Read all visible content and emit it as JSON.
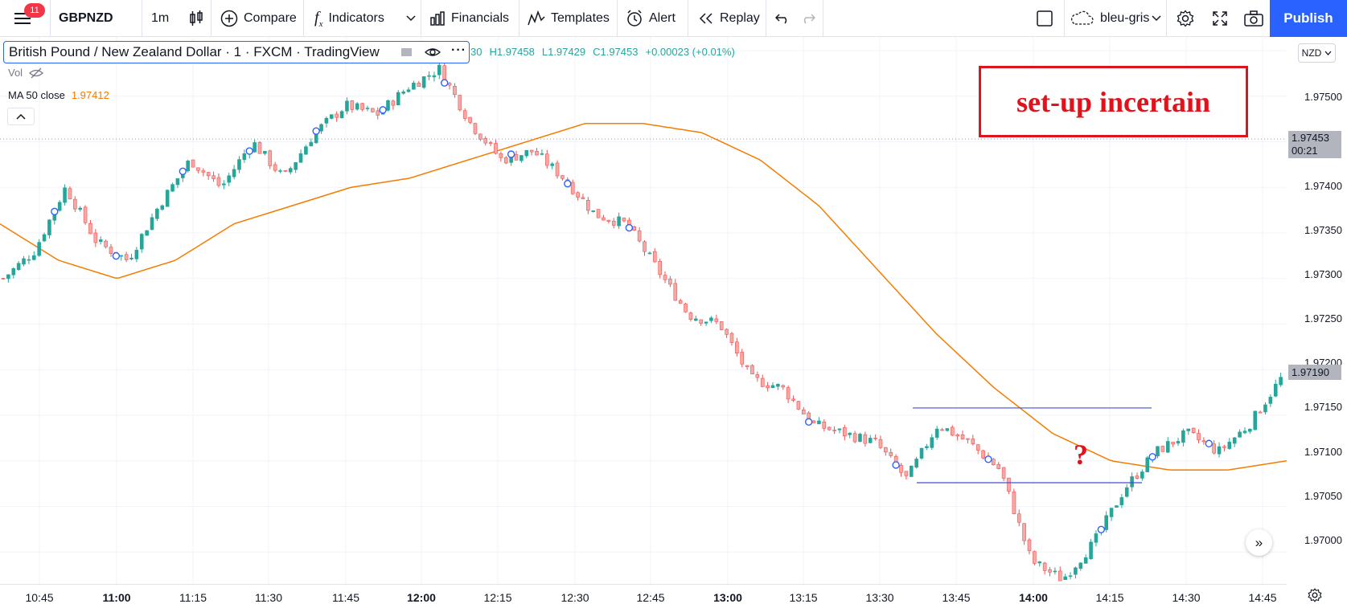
{
  "toolbar": {
    "notif_count": "11",
    "symbol": "GBPNZD",
    "interval": "1m",
    "compare_label": "Compare",
    "indicators_label": "Indicators",
    "financials_label": "Financials",
    "templates_label": "Templates",
    "alert_label": "Alert",
    "replay_label": "Replay",
    "layout_name": "bleu-gris",
    "publish_label": "Publish"
  },
  "legend": {
    "title": "British Pound / New Zealand Dollar · 1 · FXCM · TradingView",
    "ohlc_prefix": "30",
    "high": "H1.97458",
    "low": "L1.97429",
    "close": "C1.97453",
    "change": "+0.00023 (+0.01%)",
    "vol_label": "Vol",
    "ma_label": "MA 50 close",
    "ma_value": "1.97412"
  },
  "annotation": {
    "box_text": "set-up incertain",
    "question": "?"
  },
  "price_axis": {
    "currency": "NZD",
    "labels": [
      "1.97500",
      "1.97400",
      "1.97350",
      "1.97300",
      "1.97250",
      "1.97200",
      "1.97150",
      "1.97100",
      "1.97050",
      "1.97000"
    ],
    "current_price": "1.97453",
    "countdown": "00:21",
    "last_price": "1.97190"
  },
  "time_axis": {
    "labels": [
      "10:45",
      "11:00",
      "11:15",
      "11:30",
      "11:45",
      "12:00",
      "12:15",
      "12:30",
      "12:45",
      "13:00",
      "13:15",
      "13:30",
      "13:45",
      "14:00",
      "14:15",
      "14:30",
      "14:45"
    ],
    "bold": [
      "11:00",
      "12:00",
      "13:00",
      "14:00"
    ]
  },
  "colors": {
    "up": "#26a69a",
    "down": "#ef5350",
    "ma": "#f57c00",
    "annotation": "#e0121c",
    "level_line": "#3f51d8",
    "accent": "#2962ff"
  },
  "chart_data": {
    "type": "candlestick",
    "symbol": "GBPNZD",
    "x": [
      "10:45",
      "11:00",
      "11:15",
      "11:30",
      "11:45",
      "12:00",
      "12:15",
      "12:30",
      "12:45",
      "13:00",
      "13:15",
      "13:30",
      "13:45",
      "14:00",
      "14:15",
      "14:30",
      "14:45"
    ],
    "close_path": [
      1.973,
      1.9733,
      1.974,
      1.9734,
      1.9732,
      1.9738,
      1.9743,
      1.974,
      1.9745,
      1.9741,
      1.9746,
      1.9749,
      1.9748,
      1.9751,
      1.9753,
      1.9747,
      1.9743,
      1.9744,
      1.9741,
      1.9737,
      1.9736,
      1.9731,
      1.9726,
      1.9725,
      1.9719,
      1.9718,
      1.9714,
      1.9713,
      1.9712,
      1.9708,
      1.9714,
      1.9712,
      1.9709,
      1.9699,
      1.9697,
      1.9701,
      1.9707,
      1.9711,
      1.9713,
      1.9711,
      1.9714,
      1.9719
    ],
    "ma_path": [
      1.9736,
      1.9732,
      1.973,
      1.9732,
      1.9736,
      1.9738,
      1.974,
      1.9741,
      1.9743,
      1.9745,
      1.9747,
      1.9747,
      1.9746,
      1.9743,
      1.9738,
      1.9731,
      1.9724,
      1.9718,
      1.9713,
      1.971,
      1.9709,
      1.9709,
      1.971
    ],
    "levels": [
      1.97158,
      1.97076
    ],
    "ylim": [
      1.96965,
      1.97565
    ]
  }
}
